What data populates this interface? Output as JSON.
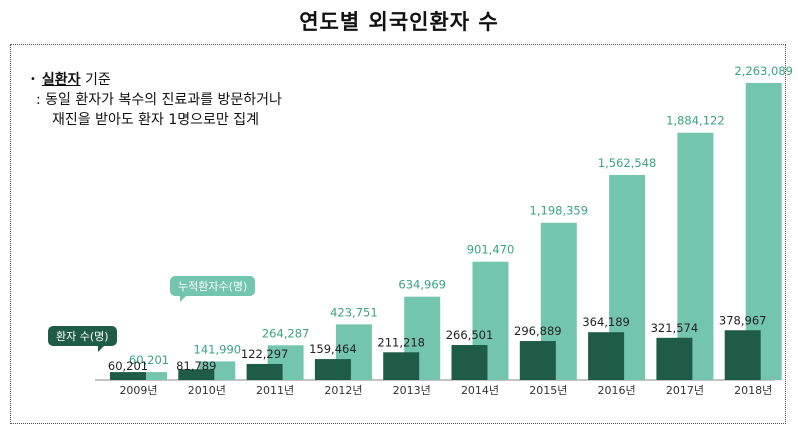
{
  "page": {
    "title": "연도별 외국인환자 수"
  },
  "note": {
    "bullet": "•",
    "emphasis": "실환자",
    "criteria": " 기준",
    "line2": ": 동일 환자가 복수의 진료과를 방문하거나",
    "line3": "재진을 받아도 환자 1명으로만 집계"
  },
  "callouts": {
    "cumulative": "누적환자수(명)",
    "patients": "환자 수(명)"
  },
  "colors": {
    "cumulative_bar": "#74c5ad",
    "patient_bar": "#1f5c47",
    "cumulative_label": "#3aa382",
    "patient_label": "#222222",
    "axis": "#888888"
  },
  "chart_data": {
    "type": "bar",
    "title": "연도별 외국인환자 수",
    "categories": [
      "2009년",
      "2010년",
      "2011년",
      "2012년",
      "2013년",
      "2014년",
      "2015년",
      "2016년",
      "2017년",
      "2018년"
    ],
    "series": [
      {
        "name": "환자 수(명)",
        "values": [
          60201,
          81789,
          122297,
          159464,
          211218,
          266501,
          296889,
          364189,
          321574,
          378967
        ]
      },
      {
        "name": "누적환자수(명)",
        "values": [
          60201,
          141990,
          264287,
          423751,
          634969,
          901470,
          1198359,
          1562548,
          1884122,
          2263089
        ]
      }
    ],
    "data_labels": {
      "patients": [
        "60,201",
        "81,789",
        "122,297",
        "159,464",
        "211,218",
        "266,501",
        "296,889",
        "364,189",
        "321,574",
        "378,967"
      ],
      "cumulative": [
        "60,201",
        "141,990",
        "264,287",
        "423,751",
        "634,969",
        "901,470",
        "1,198,359",
        "1,562,548",
        "1,884,122",
        "2,263,089"
      ]
    },
    "ylim": [
      0,
      2263089
    ],
    "grid": false
  }
}
